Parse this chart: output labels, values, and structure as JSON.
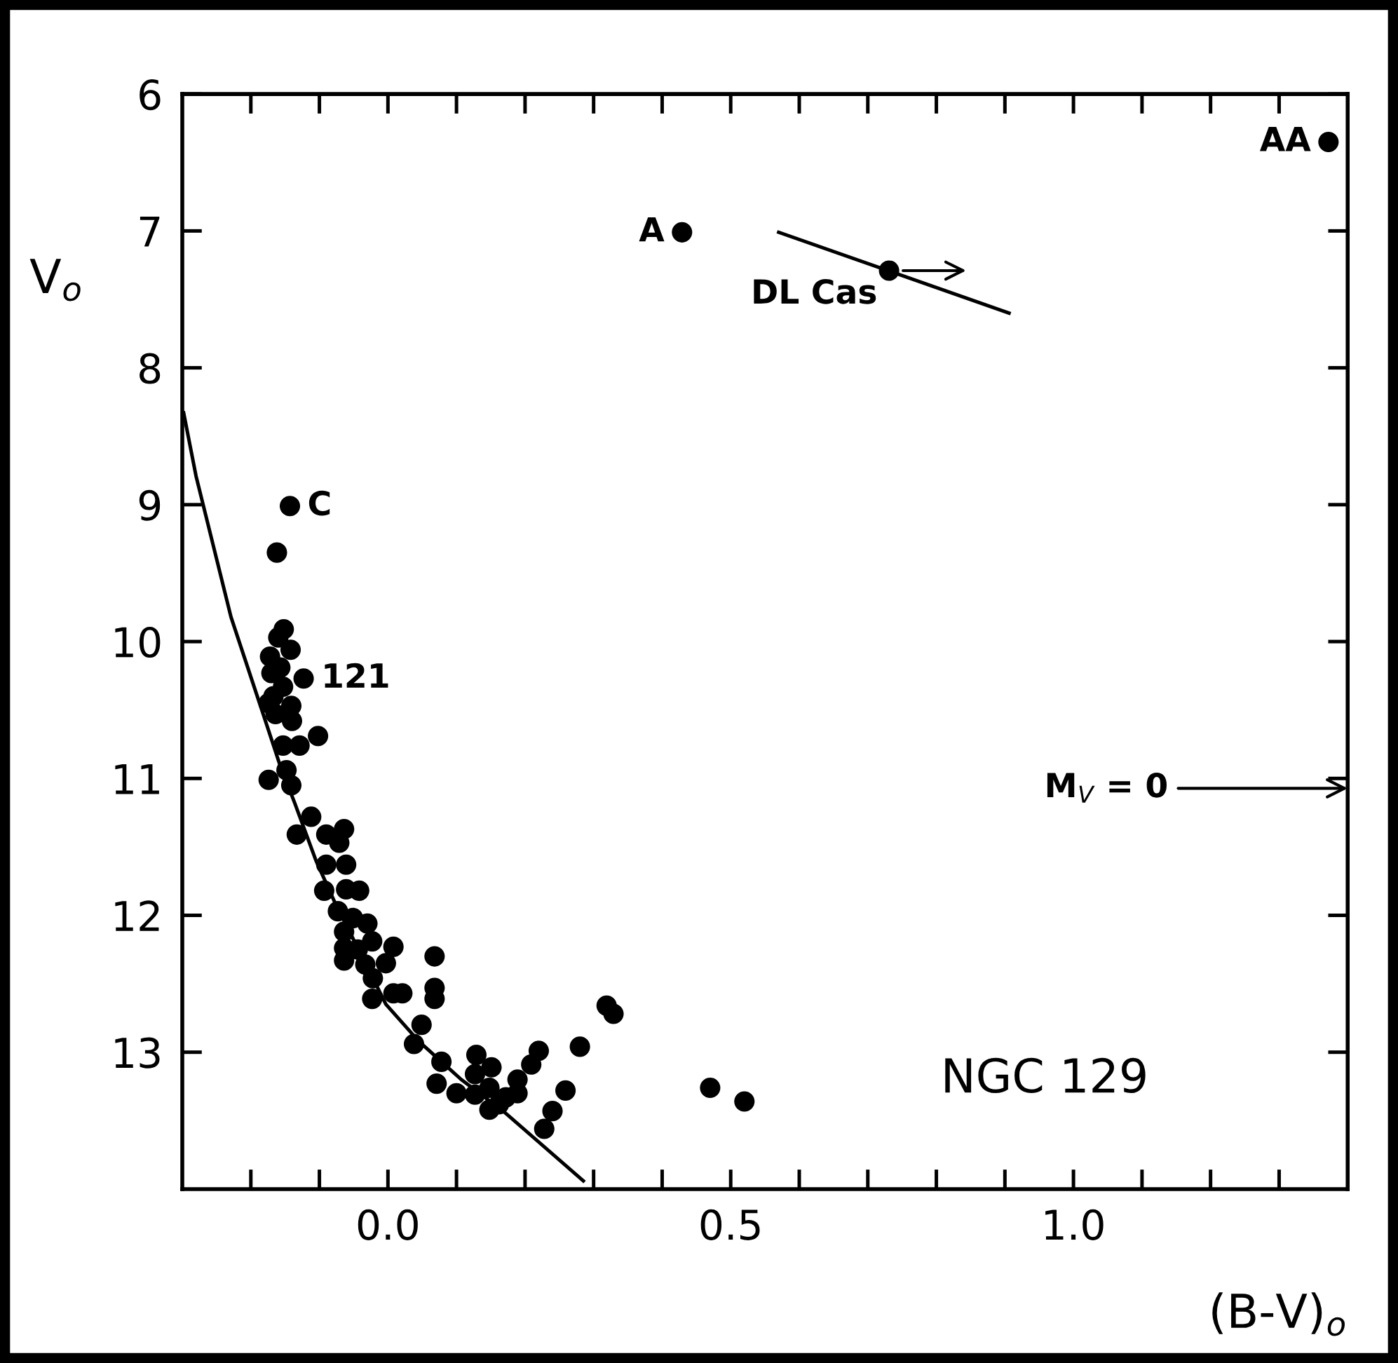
{
  "chart_data": {
    "type": "scatter",
    "xlabel": "(B-V)$_{o}$",
    "ylabel": "V$_{o}$",
    "marker": "circle",
    "grid": false,
    "legend": false,
    "xlim": [
      -0.3,
      1.4
    ],
    "ylim": [
      14,
      6
    ],
    "xticks": [
      {
        "value": -0.2,
        "label": null
      },
      {
        "value": -0.1,
        "label": null
      },
      {
        "value": 0.0,
        "label": "0.0"
      },
      {
        "value": 0.1,
        "label": null
      },
      {
        "value": 0.2,
        "label": null
      },
      {
        "value": 0.3,
        "label": null
      },
      {
        "value": 0.4,
        "label": null
      },
      {
        "value": 0.5,
        "label": "0.5"
      },
      {
        "value": 0.6,
        "label": null
      },
      {
        "value": 0.7,
        "label": null
      },
      {
        "value": 0.8,
        "label": null
      },
      {
        "value": 0.9,
        "label": null
      },
      {
        "value": 1.0,
        "label": "1.0"
      },
      {
        "value": 1.1,
        "label": null
      },
      {
        "value": 1.2,
        "label": null
      },
      {
        "value": 1.3,
        "label": null
      }
    ],
    "yticks": [
      6,
      7,
      8,
      9,
      10,
      11,
      12,
      13
    ],
    "series": [
      {
        "color": "#000000",
        "x": [
          1.372,
          0.429,
          0.731,
          -0.143,
          -0.162,
          -0.152,
          -0.16,
          -0.142,
          -0.172,
          -0.17,
          -0.157,
          -0.123,
          -0.153,
          -0.174,
          -0.141,
          -0.164,
          -0.14,
          -0.167,
          -0.153,
          -0.129,
          -0.102,
          -0.174,
          -0.148,
          -0.141,
          -0.112,
          -0.133,
          -0.09,
          -0.064,
          -0.071,
          -0.09,
          -0.061,
          -0.093,
          -0.061,
          -0.042,
          -0.073,
          -0.051,
          -0.03,
          -0.064,
          -0.064,
          -0.064,
          -0.044,
          -0.023,
          -0.033,
          0.008,
          -0.003,
          -0.022,
          -0.023,
          0.008,
          0.021,
          0.068,
          0.068,
          0.068,
          0.049,
          0.038,
          0.078,
          0.071,
          0.1,
          0.129,
          0.151,
          0.127,
          0.127,
          0.148,
          0.172,
          0.148,
          0.162,
          0.189,
          0.189,
          0.209,
          0.22,
          0.259,
          0.24,
          0.228,
          0.28,
          0.319,
          0.329,
          0.47,
          0.52
        ],
        "values": [
          6.35,
          7.01,
          7.29,
          9.01,
          9.35,
          9.91,
          9.97,
          10.06,
          10.11,
          10.23,
          10.19,
          10.27,
          10.33,
          10.45,
          10.47,
          10.53,
          10.58,
          10.4,
          10.76,
          10.76,
          10.69,
          11.01,
          10.94,
          11.05,
          11.28,
          11.41,
          11.41,
          11.37,
          11.47,
          11.63,
          11.63,
          11.82,
          11.81,
          11.82,
          11.97,
          12.02,
          12.06,
          12.12,
          12.24,
          12.33,
          12.25,
          12.19,
          12.36,
          12.23,
          12.35,
          12.46,
          12.61,
          12.57,
          12.57,
          12.3,
          12.53,
          12.61,
          12.8,
          12.94,
          13.07,
          13.23,
          13.3,
          13.02,
          13.11,
          13.16,
          13.31,
          13.26,
          13.33,
          13.42,
          13.38,
          13.2,
          13.3,
          13.09,
          12.99,
          13.28,
          13.43,
          13.56,
          12.96,
          12.66,
          12.72,
          13.26,
          13.36
        ]
      },
      {
        "type": "line",
        "color": "#000000",
        "marker": "none",
        "x": [
          -0.298,
          -0.28,
          -0.229,
          -0.184,
          -0.157,
          -0.136,
          -0.105,
          -0.078,
          -0.003,
          0.045,
          0.107,
          0.168,
          0.285
        ],
        "values": [
          8.33,
          8.79,
          9.82,
          10.5,
          10.91,
          11.18,
          11.6,
          11.9,
          12.65,
          12.92,
          13.2,
          13.43,
          13.94
        ]
      },
      {
        "type": "line",
        "color": "#000000",
        "marker": "none",
        "x": [
          0.57,
          0.906
        ],
        "values": [
          7.01,
          7.6
        ]
      }
    ],
    "annotations": [
      {
        "text": "AA",
        "x": 1.372,
        "y": 6.35
      },
      {
        "text": "A",
        "x": 0.429,
        "y": 7.01
      },
      {
        "text": "DL Cas",
        "x": 0.731,
        "y": 7.29
      },
      {
        "text": "C",
        "x": -0.143,
        "y": 9.01
      },
      {
        "text": "121",
        "x": -0.123,
        "y": 10.27
      },
      "M$_{V}$ = 0",
      "NGC 129"
    ]
  }
}
